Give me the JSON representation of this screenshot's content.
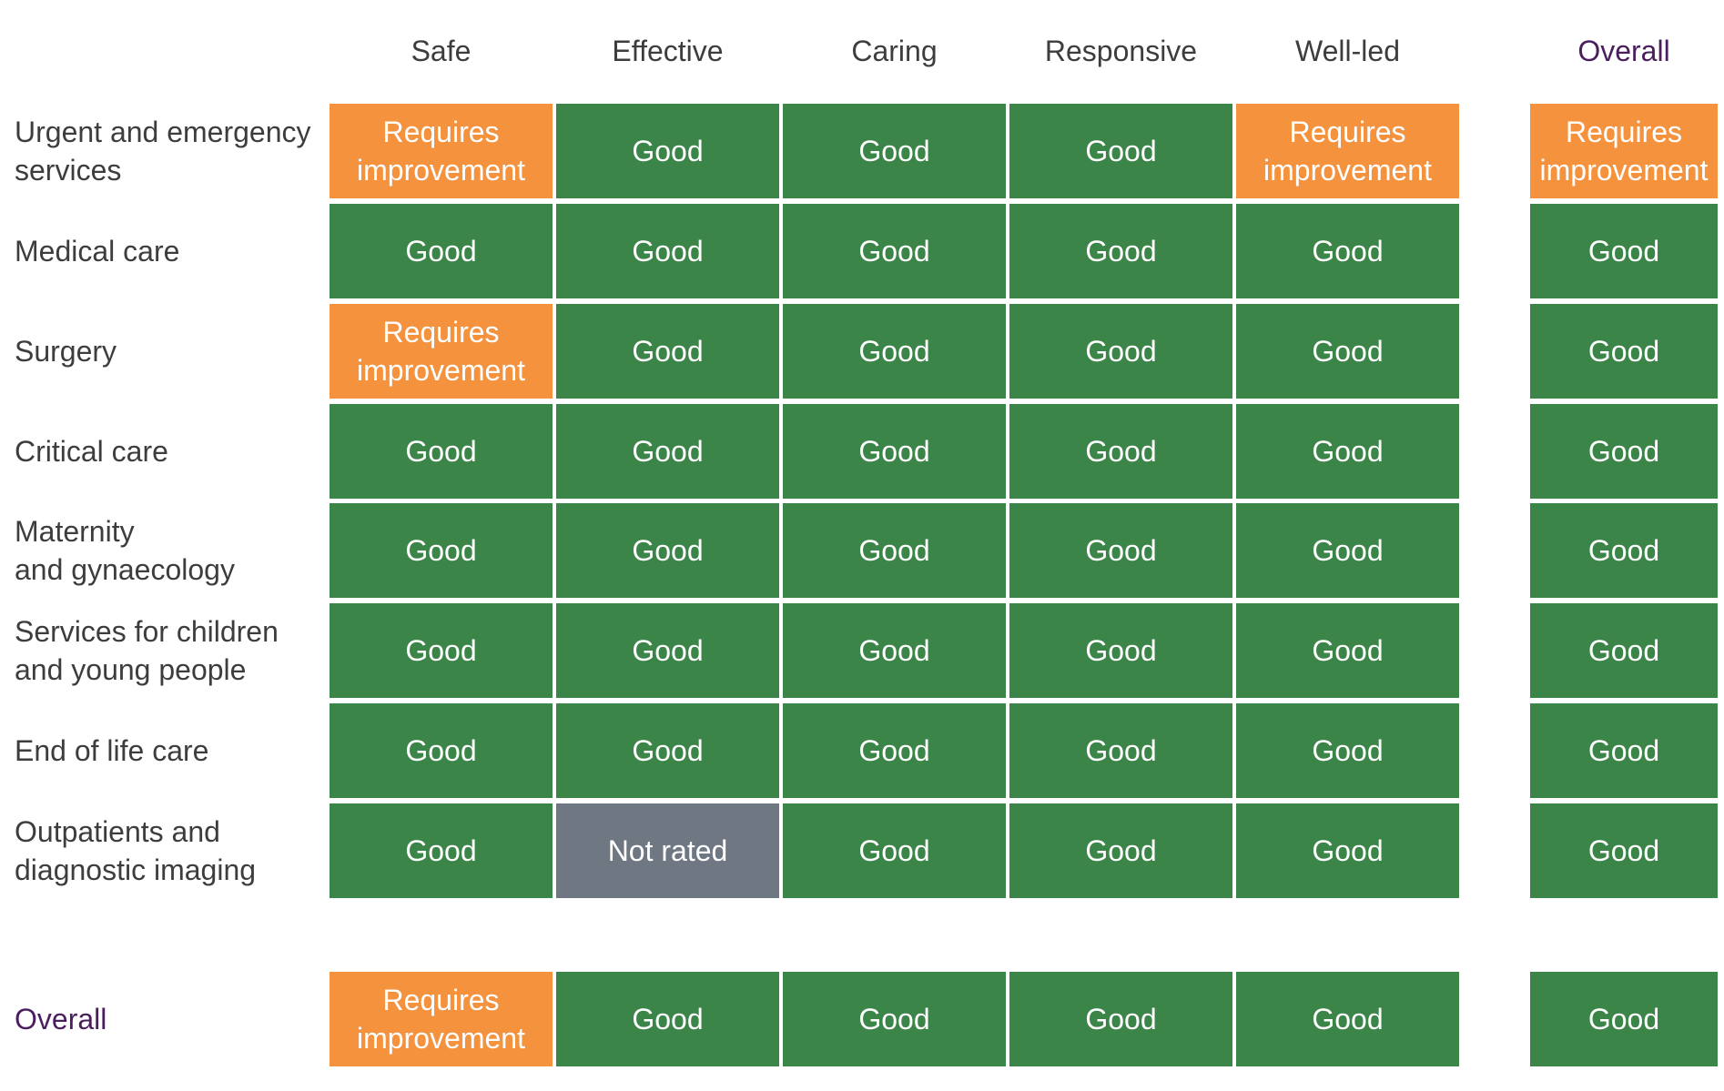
{
  "colors": {
    "good": "#3b8548",
    "requires_improvement": "#f5923e",
    "not_rated": "#6f7782",
    "overall_text": "#4b1f5e"
  },
  "chart_data": {
    "type": "table",
    "title": "",
    "columns": [
      "Safe",
      "Effective",
      "Caring",
      "Responsive",
      "Well-led"
    ],
    "overall_column": "Overall",
    "rows": [
      {
        "label": "Urgent and emergency services",
        "label_lines": [
          "Urgent and emergency",
          "services"
        ],
        "values": [
          "Requires improvement",
          "Good",
          "Good",
          "Good",
          "Requires improvement"
        ],
        "overall": "Requires improvement"
      },
      {
        "label": "Medical care",
        "label_lines": [
          "Medical care"
        ],
        "values": [
          "Good",
          "Good",
          "Good",
          "Good",
          "Good"
        ],
        "overall": "Good"
      },
      {
        "label": "Surgery",
        "label_lines": [
          "Surgery"
        ],
        "values": [
          "Requires improvement",
          "Good",
          "Good",
          "Good",
          "Good"
        ],
        "overall": "Good"
      },
      {
        "label": "Critical care",
        "label_lines": [
          "Critical care"
        ],
        "values": [
          "Good",
          "Good",
          "Good",
          "Good",
          "Good"
        ],
        "overall": "Good"
      },
      {
        "label": "Maternity and gynaecology",
        "label_lines": [
          "Maternity",
          "and gynaecology"
        ],
        "values": [
          "Good",
          "Good",
          "Good",
          "Good",
          "Good"
        ],
        "overall": "Good"
      },
      {
        "label": "Services for children and young people",
        "label_lines": [
          "Services for children",
          "and young people"
        ],
        "values": [
          "Good",
          "Good",
          "Good",
          "Good",
          "Good"
        ],
        "overall": "Good"
      },
      {
        "label": "End of life care",
        "label_lines": [
          "End of life care"
        ],
        "values": [
          "Good",
          "Good",
          "Good",
          "Good",
          "Good"
        ],
        "overall": "Good"
      },
      {
        "label": "Outpatients and diagnostic imaging",
        "label_lines": [
          "Outpatients and",
          "diagnostic imaging"
        ],
        "values": [
          "Good",
          "Not rated",
          "Good",
          "Good",
          "Good"
        ],
        "overall": "Good"
      }
    ],
    "overall_row": {
      "label": "Overall",
      "label_lines": [
        "Overall"
      ],
      "values": [
        "Requires improvement",
        "Good",
        "Good",
        "Good",
        "Good"
      ],
      "overall": "Good"
    }
  }
}
